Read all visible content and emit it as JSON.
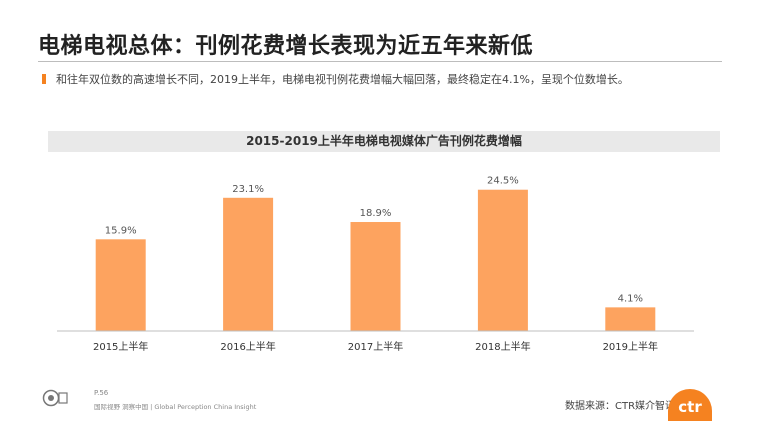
{
  "slide": {
    "title": "电梯电视总体：刊例花费增长表现为近五年来新低",
    "bullet": "和往年双位数的高速增长不同，2019上半年，电梯电视刊例花费增幅大幅回落，最终稳定在4.1%，呈现个位数增长。"
  },
  "chart_data": {
    "type": "bar",
    "title": "2015-2019上半年电梯电视媒体广告刊例花费增幅",
    "categories": [
      "2015上半年",
      "2016上半年",
      "2017上半年",
      "2018上半年",
      "2019上半年"
    ],
    "values": [
      15.9,
      23.1,
      18.9,
      24.5,
      4.1
    ],
    "value_labels": [
      "15.9%",
      "23.1%",
      "18.9%",
      "24.5%",
      "4.1%"
    ],
    "unit": "%",
    "ylim": [
      0,
      30
    ],
    "grid": false,
    "bar_color": "#fda35f",
    "xlabel": "",
    "ylabel": ""
  },
  "footer": {
    "code": "P.56",
    "slogan": "国际视野 洞察中国 | Global Perception  China Insight",
    "source": "数据来源：CTR媒介智讯",
    "brand": "ctr"
  },
  "colors": {
    "accent": "#f58220",
    "bar": "#fda35f",
    "band": "#e9e9e9"
  }
}
